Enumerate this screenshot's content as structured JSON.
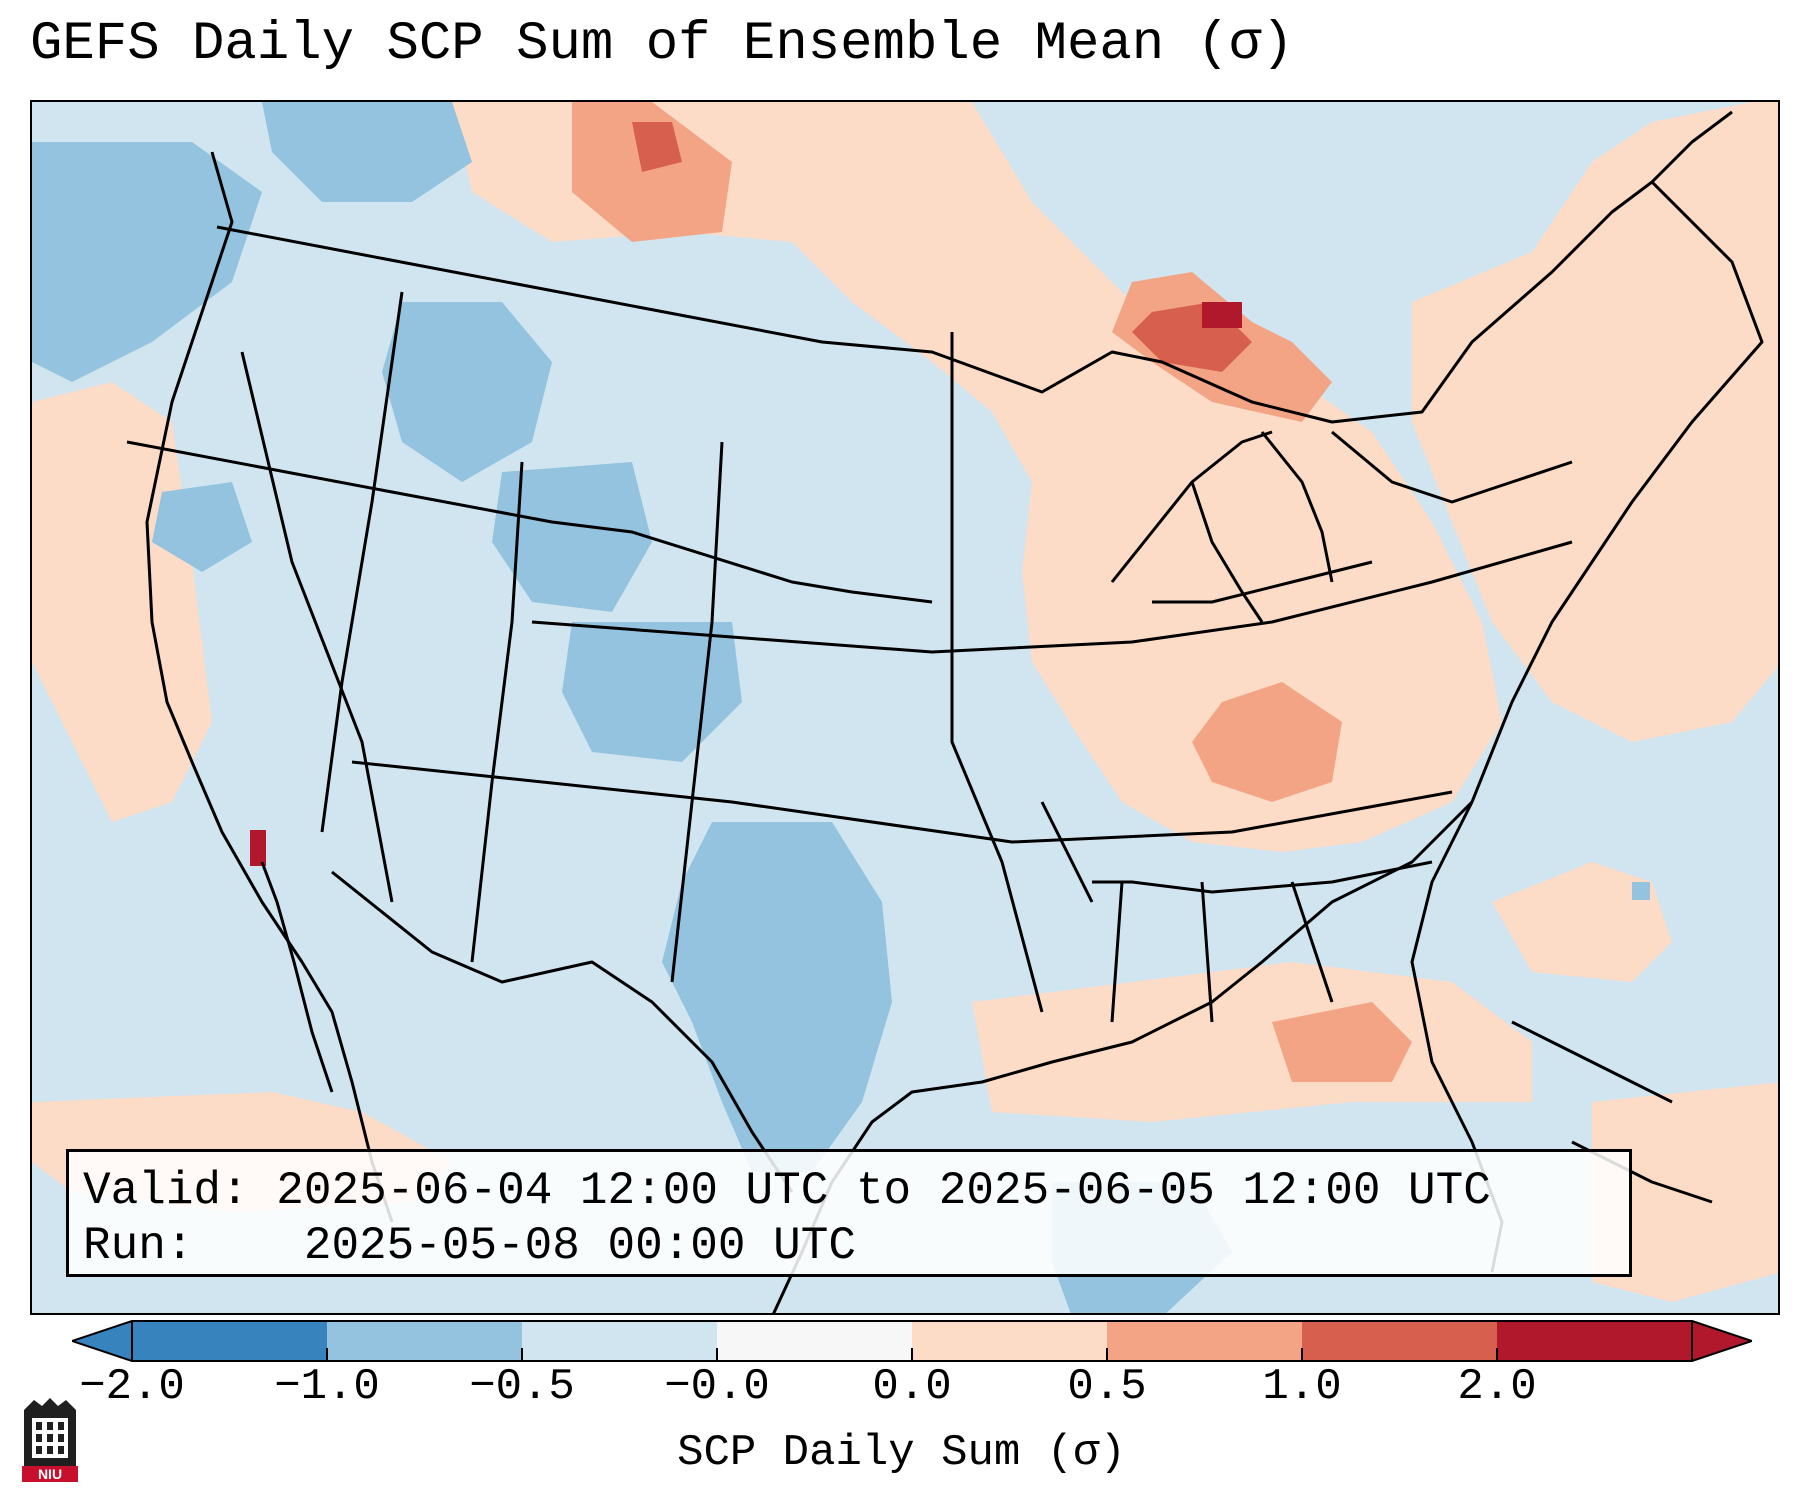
{
  "title": "GEFS Daily SCP Sum of Ensemble Mean (σ)",
  "valid_label": "Valid:",
  "valid_range": "2025-06-04 12:00 UTC to 2025-06-05 12:00 UTC",
  "run_label": "Run:",
  "run_time": "2025-05-08 00:00 UTC",
  "colorbar": {
    "label": "SCP Daily Sum (σ)",
    "ticks": [
      "−2.0",
      "−1.0",
      "−0.5",
      "−0.0",
      "0.0",
      "0.5",
      "1.0",
      "2.0"
    ],
    "colors": [
      "#3683bd",
      "#93c3de",
      "#d1e5f0",
      "#f7f7f7",
      "#fcdbc7",
      "#f2a484",
      "#d6604d",
      "#b2182b"
    ],
    "under_color": "#3683bd",
    "over_color": "#b2182b"
  },
  "map": {
    "region": "CONUS",
    "background_color": "#d1e5f0",
    "border_color": "#000000"
  },
  "logo_text": "NIU"
}
